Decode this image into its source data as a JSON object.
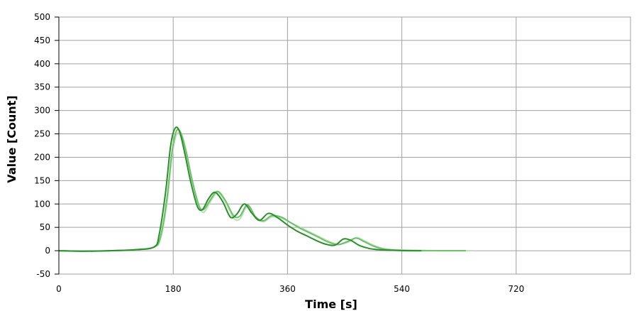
{
  "chart_data": {
    "type": "line",
    "title": "",
    "xlabel": "Time [s]",
    "ylabel": "Value [Count]",
    "xlim": [
      0,
      900
    ],
    "ylim": [
      -50,
      500
    ],
    "x_ticks": [
      0,
      180,
      360,
      540,
      720
    ],
    "y_ticks": [
      -50,
      0,
      50,
      100,
      150,
      200,
      250,
      300,
      350,
      400,
      450,
      500
    ],
    "grid": true,
    "legend": "none",
    "series": [
      {
        "color": "#b9e0b4",
        "x": [
          0,
          40,
          80,
          120,
          150,
          160,
          170,
          178,
          185,
          192,
          200,
          210,
          220,
          228,
          240,
          250,
          262,
          275,
          285,
          297,
          310,
          322,
          335,
          350,
          365,
          380,
          395,
          410,
          425,
          440,
          455,
          468,
          480,
          495,
          510,
          530,
          560,
          600,
          650
        ],
        "y": [
          0,
          -1,
          0,
          2,
          8,
          25,
          100,
          200,
          248,
          245,
          210,
          150,
          100,
          82,
          108,
          125,
          105,
          70,
          68,
          95,
          70,
          62,
          72,
          70,
          60,
          50,
          40,
          30,
          20,
          14,
          18,
          28,
          22,
          12,
          5,
          2,
          1,
          0,
          0
        ]
      },
      {
        "color": "#6cc06a",
        "x": [
          0,
          40,
          80,
          120,
          150,
          160,
          170,
          178,
          185,
          192,
          200,
          210,
          220,
          228,
          240,
          250,
          262,
          275,
          285,
          297,
          310,
          322,
          335,
          350,
          365,
          380,
          395,
          410,
          425,
          440,
          455,
          468,
          480,
          495,
          510,
          530,
          560,
          600,
          640
        ],
        "y": [
          0,
          -1,
          0,
          2,
          8,
          30,
          110,
          210,
          256,
          252,
          215,
          150,
          98,
          88,
          112,
          127,
          108,
          75,
          74,
          98,
          72,
          64,
          75,
          72,
          60,
          48,
          38,
          28,
          18,
          13,
          20,
          27,
          20,
          10,
          4,
          1,
          0,
          0,
          0
        ]
      },
      {
        "color": "#2a8f2a",
        "x": [
          0,
          40,
          80,
          120,
          150,
          158,
          168,
          176,
          183,
          190,
          198,
          208,
          218,
          226,
          236,
          246,
          258,
          270,
          280,
          292,
          304,
          316,
          330,
          345,
          360,
          375,
          390,
          405,
          420,
          435,
          448,
          460,
          472,
          488,
          505,
          525,
          545,
          570
        ],
        "y": [
          0,
          -1,
          0,
          2,
          8,
          35,
          125,
          225,
          262,
          255,
          210,
          145,
          95,
          88,
          112,
          125,
          105,
          72,
          78,
          100,
          80,
          65,
          80,
          70,
          55,
          42,
          32,
          22,
          14,
          12,
          25,
          22,
          12,
          5,
          2,
          1,
          0,
          0
        ]
      }
    ]
  }
}
